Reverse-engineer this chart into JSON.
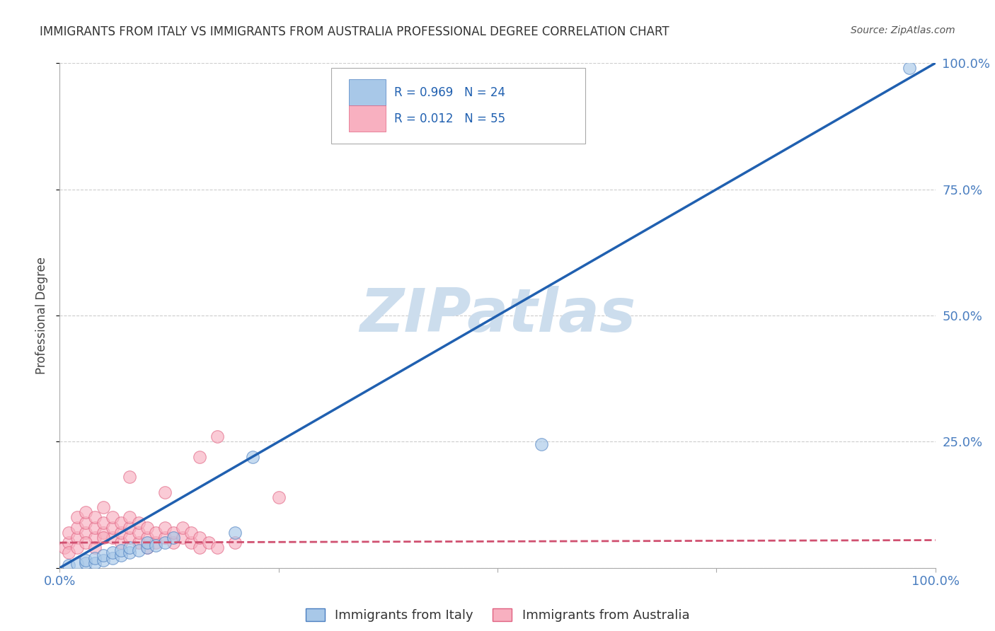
{
  "title": "IMMIGRANTS FROM ITALY VS IMMIGRANTS FROM AUSTRALIA PROFESSIONAL DEGREE CORRELATION CHART",
  "source": "Source: ZipAtlas.com",
  "ylabel": "Professional Degree",
  "xmin": 0.0,
  "xmax": 1.0,
  "ymin": 0.0,
  "ymax": 1.0,
  "xtick_positions": [
    0.0,
    0.25,
    0.5,
    0.75,
    1.0
  ],
  "xtick_labels": [
    "0.0%",
    "",
    "",
    "",
    "100.0%"
  ],
  "ytick_positions": [
    0.0,
    0.25,
    0.5,
    0.75,
    1.0
  ],
  "ytick_labels": [
    "",
    "25.0%",
    "50.0%",
    "75.0%",
    "100.0%"
  ],
  "blue_color": "#a8c8e8",
  "blue_edge_color": "#4a7ec0",
  "blue_line_color": "#2060b0",
  "pink_color": "#f8b0c0",
  "pink_edge_color": "#e06080",
  "pink_line_color": "#d05070",
  "legend_label1": "Immigrants from Italy",
  "legend_label2": "Immigrants from Australia",
  "watermark": "ZIPatlas",
  "watermark_color": "#ccdded",
  "blue_scatter_x": [
    0.01,
    0.02,
    0.03,
    0.03,
    0.04,
    0.04,
    0.05,
    0.05,
    0.06,
    0.06,
    0.07,
    0.07,
    0.08,
    0.08,
    0.09,
    0.1,
    0.1,
    0.11,
    0.12,
    0.13,
    0.2,
    0.22,
    0.55,
    0.97
  ],
  "blue_scatter_y": [
    0.005,
    0.008,
    0.01,
    0.015,
    0.01,
    0.02,
    0.015,
    0.025,
    0.02,
    0.03,
    0.025,
    0.035,
    0.03,
    0.04,
    0.035,
    0.04,
    0.05,
    0.045,
    0.05,
    0.06,
    0.07,
    0.22,
    0.245,
    0.99
  ],
  "pink_scatter_x": [
    0.005,
    0.01,
    0.01,
    0.02,
    0.02,
    0.02,
    0.03,
    0.03,
    0.03,
    0.04,
    0.04,
    0.04,
    0.05,
    0.05,
    0.05,
    0.06,
    0.06,
    0.06,
    0.07,
    0.07,
    0.07,
    0.08,
    0.08,
    0.08,
    0.09,
    0.09,
    0.09,
    0.1,
    0.1,
    0.1,
    0.11,
    0.11,
    0.12,
    0.12,
    0.13,
    0.13,
    0.14,
    0.14,
    0.15,
    0.15,
    0.16,
    0.16,
    0.17,
    0.18,
    0.2,
    0.01,
    0.02,
    0.03,
    0.04,
    0.05,
    0.08,
    0.12,
    0.16,
    0.18,
    0.25
  ],
  "pink_scatter_y": [
    0.04,
    0.05,
    0.07,
    0.06,
    0.08,
    0.1,
    0.07,
    0.09,
    0.11,
    0.06,
    0.08,
    0.1,
    0.07,
    0.09,
    0.12,
    0.06,
    0.08,
    0.1,
    0.05,
    0.07,
    0.09,
    0.06,
    0.08,
    0.1,
    0.05,
    0.07,
    0.09,
    0.06,
    0.08,
    0.04,
    0.05,
    0.07,
    0.06,
    0.08,
    0.05,
    0.07,
    0.06,
    0.08,
    0.05,
    0.07,
    0.04,
    0.06,
    0.05,
    0.04,
    0.05,
    0.03,
    0.04,
    0.05,
    0.04,
    0.06,
    0.18,
    0.15,
    0.22,
    0.26,
    0.14
  ],
  "blue_trend_x": [
    0.0,
    1.0
  ],
  "blue_trend_y": [
    0.0,
    1.0
  ],
  "pink_trend_x": [
    0.0,
    1.0
  ],
  "pink_trend_y": [
    0.05,
    0.055
  ],
  "background_color": "#ffffff",
  "grid_color": "#cccccc",
  "tick_color": "#4a7ec0"
}
